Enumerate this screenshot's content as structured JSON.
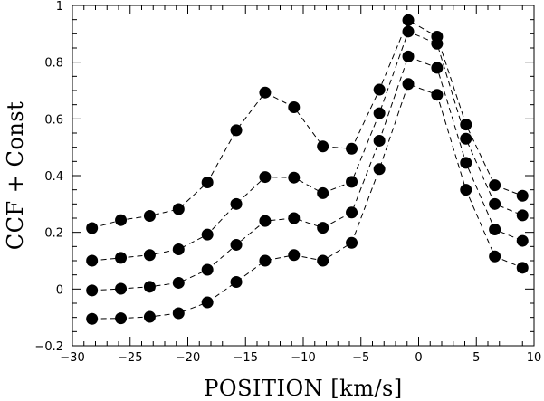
{
  "chart_data": {
    "type": "line",
    "title": "",
    "xlabel": "POSITION [km/s]",
    "ylabel": "CCF + Const",
    "xlim": [
      -30,
      10
    ],
    "ylim": [
      -0.2,
      1.0
    ],
    "xticks": [
      -30,
      -25,
      -20,
      -15,
      -10,
      -5,
      0,
      5,
      10
    ],
    "xtick_labels": [
      "−30",
      "−25",
      "−20",
      "−15",
      "−10",
      "−5",
      "0",
      "5",
      "10"
    ],
    "yticks": [
      -0.2,
      0,
      0.2,
      0.4,
      0.6,
      0.8,
      1.0
    ],
    "ytick_labels": [
      "−0.2",
      "0",
      "0.2",
      "0.4",
      "0.6",
      "0.8",
      "1"
    ],
    "grid": false,
    "legend": "none",
    "marker": "filled-circle",
    "line_style": "dashed",
    "x": [
      -28.3,
      -25.8,
      -23.3,
      -20.8,
      -18.3,
      -15.8,
      -13.3,
      -10.8,
      -8.3,
      -5.8,
      -3.4,
      -0.9,
      1.6,
      4.1,
      6.6,
      9.0
    ],
    "series": [
      {
        "values": [
          0.215,
          0.243,
          0.258,
          0.282,
          0.376,
          0.56,
          0.693,
          0.641,
          0.503,
          0.495,
          0.703,
          0.948,
          0.89,
          0.58,
          0.366,
          0.329
        ]
      },
      {
        "values": [
          0.1,
          0.11,
          0.12,
          0.14,
          0.192,
          0.3,
          0.395,
          0.393,
          0.338,
          0.378,
          0.62,
          0.908,
          0.865,
          0.53,
          0.3,
          0.26
        ]
      },
      {
        "values": [
          -0.005,
          0.001,
          0.008,
          0.022,
          0.068,
          0.156,
          0.24,
          0.25,
          0.216,
          0.27,
          0.523,
          0.82,
          0.78,
          0.445,
          0.21,
          0.17
        ]
      },
      {
        "values": [
          -0.105,
          -0.103,
          -0.098,
          -0.085,
          -0.047,
          0.025,
          0.1,
          0.12,
          0.1,
          0.163,
          0.423,
          0.723,
          0.685,
          0.35,
          0.115,
          0.075
        ]
      }
    ]
  }
}
